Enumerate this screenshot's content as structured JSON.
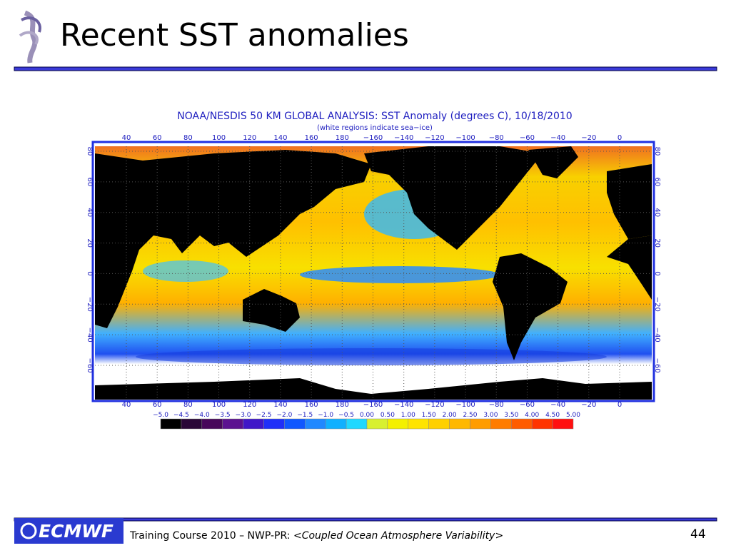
{
  "header": {
    "title": "Recent SST anomalies"
  },
  "map": {
    "title": "NOAA/NESDIS 50 KM GLOBAL ANALYSIS: SST Anomaly (degrees C), 10/18/2010",
    "subtitle": "(white regions indicate sea−ice)",
    "lon_labels": [
      "40",
      "60",
      "80",
      "100",
      "120",
      "140",
      "160",
      "180",
      "−160",
      "−140",
      "−120",
      "−100",
      "−80",
      "−60",
      "−40",
      "−20",
      "0"
    ],
    "lat_labels": [
      "80",
      "60",
      "40",
      "20",
      "0",
      "−20",
      "−40",
      "−60"
    ]
  },
  "colorbar": {
    "labels": [
      "−5.0",
      "−4.5",
      "−4.0",
      "−3.5",
      "−3.0",
      "−2.5",
      "−2.0",
      "−1.5",
      "−1.0",
      "−0.5",
      "0.00",
      "0.50",
      "1.00",
      "1.50",
      "2.00",
      "2.50",
      "3.00",
      "3.50",
      "4.00",
      "4.50",
      "5.00"
    ],
    "colors": [
      "#000000",
      "#2a0838",
      "#48085a",
      "#5c1290",
      "#4018c8",
      "#2030f8",
      "#1058ff",
      "#2088ff",
      "#10b0ff",
      "#20d8ff",
      "#d8f030",
      "#f4f000",
      "#ffe400",
      "#ffd000",
      "#ffb800",
      "#ff9c00",
      "#ff7c00",
      "#ff5c00",
      "#ff3400",
      "#ff1010"
    ]
  },
  "footer": {
    "logo": "ECMWF",
    "text": "Training Course 2010 – NWP-PR: ",
    "text_italic": "<Coupled Ocean Atmosphere Variability>",
    "page": "44"
  }
}
